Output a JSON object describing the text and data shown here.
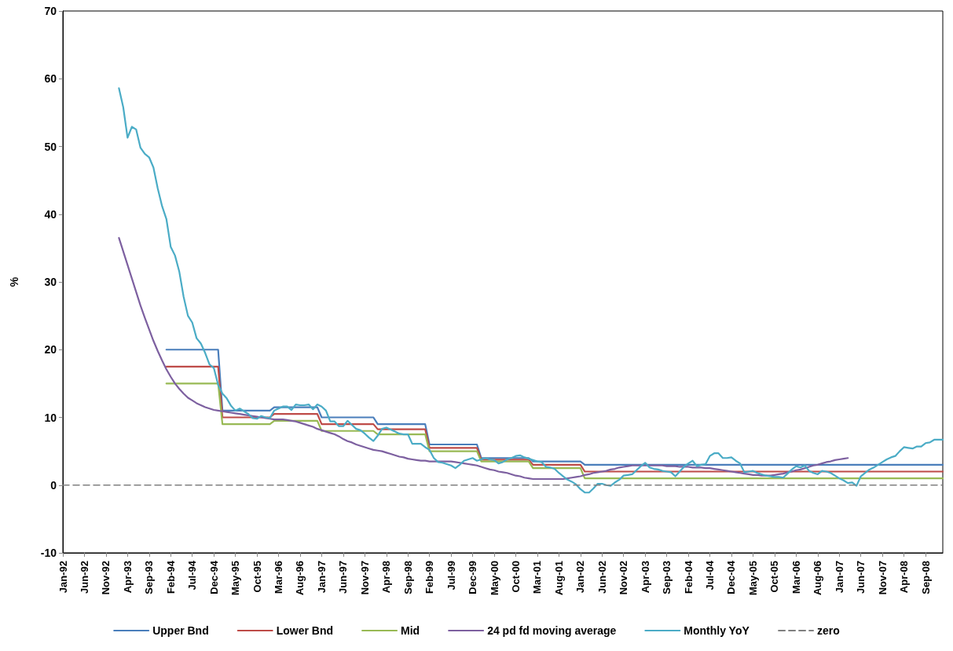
{
  "chart_data": {
    "type": "line",
    "ylabel": "%",
    "ylim": [
      -10,
      70
    ],
    "yticks": [
      -10,
      0,
      10,
      20,
      30,
      40,
      50,
      60,
      70
    ],
    "grid": false,
    "legend": "bottom",
    "marker": "none",
    "categories": [
      "Jan-92",
      null,
      null,
      null,
      null,
      "Jun-92",
      null,
      null,
      null,
      null,
      "Nov-92",
      null,
      null,
      null,
      null,
      "Apr-93",
      null,
      null,
      null,
      null,
      "Sep-93",
      null,
      null,
      null,
      null,
      "Feb-94",
      null,
      null,
      null,
      null,
      "Jul-94",
      null,
      null,
      null,
      null,
      "Dec-94",
      null,
      null,
      null,
      null,
      "May-95",
      null,
      null,
      null,
      null,
      "Oct-95",
      null,
      null,
      null,
      null,
      "Mar-96",
      null,
      null,
      null,
      null,
      "Aug-96",
      null,
      null,
      null,
      null,
      "Jan-97",
      null,
      null,
      null,
      null,
      "Jun-97",
      null,
      null,
      null,
      null,
      "Nov-97",
      null,
      null,
      null,
      null,
      "Apr-98",
      null,
      null,
      null,
      null,
      "Sep-98",
      null,
      null,
      null,
      null,
      "Feb-99",
      null,
      null,
      null,
      null,
      "Jul-99",
      null,
      null,
      null,
      null,
      "Dec-99",
      null,
      null,
      null,
      null,
      "May-00",
      null,
      null,
      null,
      null,
      "Oct-00",
      null,
      null,
      null,
      null,
      "Mar-01",
      null,
      null,
      null,
      null,
      "Aug-01",
      null,
      null,
      null,
      null,
      "Jan-02",
      null,
      null,
      null,
      null,
      "Jun-02",
      null,
      null,
      null,
      null,
      "Nov-02",
      null,
      null,
      null,
      null,
      "Apr-03",
      null,
      null,
      null,
      null,
      "Sep-03",
      null,
      null,
      null,
      null,
      "Feb-04",
      null,
      null,
      null,
      null,
      "Jul-04",
      null,
      null,
      null,
      null,
      "Dec-04",
      null,
      null,
      null,
      null,
      "May-05",
      null,
      null,
      null,
      null,
      "Oct-05",
      null,
      null,
      null,
      null,
      "Mar-06",
      null,
      null,
      null,
      null,
      "Aug-06",
      null,
      null,
      null,
      null,
      "Jan-07",
      null,
      null,
      null,
      null,
      "Jun-07",
      null,
      null,
      null,
      null,
      "Nov-07",
      null,
      null,
      null,
      null,
      "Apr-08",
      null,
      null,
      null,
      null,
      "Sep-08",
      null,
      null,
      null,
      null
    ],
    "series": [
      {
        "name": "Upper Bnd",
        "color": "#4a7ebb",
        "values": [
          null,
          null,
          null,
          null,
          null,
          null,
          null,
          null,
          null,
          null,
          null,
          null,
          null,
          null,
          null,
          null,
          null,
          null,
          null,
          null,
          null,
          null,
          null,
          null,
          20,
          20,
          20,
          20,
          20,
          20,
          20,
          20,
          20,
          20,
          20,
          20,
          20,
          11,
          11,
          11,
          11,
          11,
          11,
          11,
          11,
          11,
          11,
          11,
          11,
          11.5,
          11.5,
          11.5,
          11.5,
          11.5,
          11.5,
          11.5,
          11.5,
          11.5,
          11.5,
          11.5,
          10,
          10,
          10,
          10,
          10,
          10,
          10,
          10,
          10,
          10,
          10,
          10,
          10,
          9,
          9,
          9,
          9,
          9,
          9,
          9,
          9,
          9,
          9,
          9,
          9,
          6,
          6,
          6,
          6,
          6,
          6,
          6,
          6,
          6,
          6,
          6,
          6,
          4,
          4,
          4,
          4,
          4,
          4,
          4,
          4,
          4,
          4,
          4,
          4,
          3.5,
          3.5,
          3.5,
          3.5,
          3.5,
          3.5,
          3.5,
          3.5,
          3.5,
          3.5,
          3.5,
          3.5,
          3,
          3,
          3,
          3,
          3,
          3,
          3,
          3,
          3,
          3,
          3,
          3,
          3,
          3,
          3,
          3,
          3,
          3,
          3,
          3,
          3,
          3,
          3,
          3,
          3,
          3,
          3,
          3,
          3,
          3,
          3,
          3,
          3,
          3,
          3,
          3,
          3,
          3,
          3,
          3,
          3,
          3,
          3,
          3,
          3,
          3,
          3,
          3,
          3,
          3,
          3,
          3,
          3,
          3,
          3,
          3,
          3,
          3,
          3,
          3,
          3,
          3,
          3,
          3,
          3,
          3,
          3,
          3,
          3,
          3,
          3,
          3,
          3,
          3,
          3,
          3,
          3,
          3,
          3,
          3,
          3,
          3,
          3,
          3
        ]
      },
      {
        "name": "Lower Bnd",
        "color": "#be4b48",
        "values": [
          null,
          null,
          null,
          null,
          null,
          null,
          null,
          null,
          null,
          null,
          null,
          null,
          null,
          null,
          null,
          null,
          null,
          null,
          null,
          null,
          null,
          null,
          null,
          null,
          17.5,
          17.5,
          17.5,
          17.5,
          17.5,
          17.5,
          17.5,
          17.5,
          17.5,
          17.5,
          17.5,
          17.5,
          17.5,
          10,
          10,
          10,
          10,
          10,
          10,
          10,
          10,
          10,
          10,
          10,
          10,
          10.5,
          10.5,
          10.5,
          10.5,
          10.5,
          10.5,
          10.5,
          10.5,
          10.5,
          10.5,
          10.5,
          9,
          9,
          9,
          9,
          9,
          9,
          9,
          9,
          9,
          9,
          9,
          9,
          9,
          8.25,
          8.25,
          8.25,
          8.25,
          8.25,
          8.25,
          8.25,
          8.25,
          8.25,
          8.25,
          8.25,
          8.25,
          5.5,
          5.5,
          5.5,
          5.5,
          5.5,
          5.5,
          5.5,
          5.5,
          5.5,
          5.5,
          5.5,
          5.5,
          3.75,
          3.75,
          3.75,
          3.75,
          3.75,
          3.75,
          3.75,
          3.75,
          3.75,
          3.75,
          3.75,
          3.75,
          3,
          3,
          3,
          3,
          3,
          3,
          3,
          3,
          3,
          3,
          3,
          3,
          2,
          2,
          2,
          2,
          2,
          2,
          2,
          2,
          2,
          2,
          2,
          2,
          2,
          2,
          2,
          2,
          2,
          2,
          2,
          2,
          2,
          2,
          2,
          2,
          2,
          2,
          2,
          2,
          2,
          2,
          2,
          2,
          2,
          2,
          2,
          2,
          2,
          2,
          2,
          2,
          2,
          2,
          2,
          2,
          2,
          2,
          2,
          2,
          2,
          2,
          2,
          2,
          2,
          2,
          2,
          2,
          2,
          2,
          2,
          2,
          2,
          2,
          2,
          2,
          2,
          2,
          2,
          2,
          2,
          2,
          2,
          2,
          2,
          2,
          2,
          2,
          2,
          2,
          2,
          2,
          2,
          2,
          2,
          2
        ]
      },
      {
        "name": "Mid",
        "color": "#98b954",
        "values": [
          null,
          null,
          null,
          null,
          null,
          null,
          null,
          null,
          null,
          null,
          null,
          null,
          null,
          null,
          null,
          null,
          null,
          null,
          null,
          null,
          null,
          null,
          null,
          null,
          15,
          15,
          15,
          15,
          15,
          15,
          15,
          15,
          15,
          15,
          15,
          15,
          15,
          9,
          9,
          9,
          9,
          9,
          9,
          9,
          9,
          9,
          9,
          9,
          9,
          9.5,
          9.5,
          9.5,
          9.5,
          9.5,
          9.5,
          9.5,
          9.5,
          9.5,
          9.5,
          9.5,
          8,
          8,
          8,
          8,
          8,
          8,
          8,
          8,
          8,
          8,
          8,
          8,
          8,
          7.5,
          7.5,
          7.5,
          7.5,
          7.5,
          7.5,
          7.5,
          7.5,
          7.5,
          7.5,
          7.5,
          7.5,
          5,
          5,
          5,
          5,
          5,
          5,
          5,
          5,
          5,
          5,
          5,
          5,
          3.5,
          3.5,
          3.5,
          3.5,
          3.5,
          3.5,
          3.5,
          3.5,
          3.5,
          3.5,
          3.5,
          3.5,
          2.5,
          2.5,
          2.5,
          2.5,
          2.5,
          2.5,
          2.5,
          2.5,
          2.5,
          2.5,
          2.5,
          2.5,
          1,
          1,
          1,
          1,
          1,
          1,
          1,
          1,
          1,
          1,
          1,
          1,
          1,
          1,
          1,
          1,
          1,
          1,
          1,
          1,
          1,
          1,
          1,
          1,
          1,
          1,
          1,
          1,
          1,
          1,
          1,
          1,
          1,
          1,
          1,
          1,
          1,
          1,
          1,
          1,
          1,
          1,
          1,
          1,
          1,
          1,
          1,
          1,
          1,
          1,
          1,
          1,
          1,
          1,
          1,
          1,
          1,
          1,
          1,
          1,
          1,
          1,
          1,
          1,
          1,
          1,
          1,
          1,
          1,
          1,
          1,
          1,
          1,
          1,
          1,
          1,
          1,
          1,
          1,
          1,
          1,
          1,
          1,
          1
        ]
      },
      {
        "name": "24 pd fd moving average",
        "color": "#7d60a0",
        "values": [
          null,
          null,
          null,
          null,
          null,
          null,
          null,
          null,
          null,
          null,
          null,
          null,
          null,
          36.5,
          34.5,
          32.5,
          30.5,
          28.5,
          26.5,
          24.7,
          23.0,
          21.3,
          19.8,
          18.4,
          17.1,
          16.0,
          15.0,
          14.2,
          13.5,
          12.9,
          12.5,
          12.1,
          11.8,
          11.5,
          11.3,
          11.1,
          11.0,
          10.9,
          10.8,
          10.7,
          10.6,
          10.5,
          10.4,
          10.3,
          10.2,
          10.1,
          10.0,
          9.9,
          9.8,
          9.7,
          9.7,
          9.7,
          9.6,
          9.5,
          9.4,
          9.2,
          9.0,
          8.8,
          8.6,
          8.3,
          8.1,
          7.9,
          7.7,
          7.5,
          7.2,
          6.8,
          6.5,
          6.3,
          6.0,
          5.8,
          5.6,
          5.4,
          5.2,
          5.1,
          5.0,
          4.8,
          4.6,
          4.4,
          4.2,
          4.1,
          3.9,
          3.8,
          3.7,
          3.6,
          3.6,
          3.5,
          3.5,
          3.5,
          3.5,
          3.5,
          3.5,
          3.4,
          3.3,
          3.2,
          3.1,
          3.0,
          2.9,
          2.7,
          2.5,
          2.3,
          2.2,
          2.0,
          1.9,
          1.8,
          1.6,
          1.4,
          1.3,
          1.1,
          1.0,
          0.9,
          0.9,
          0.9,
          0.9,
          0.9,
          0.9,
          0.9,
          0.9,
          1.0,
          1.1,
          1.2,
          1.3,
          1.5,
          1.6,
          1.8,
          1.9,
          2.0,
          2.1,
          2.3,
          2.4,
          2.6,
          2.7,
          2.8,
          2.9,
          2.9,
          2.9,
          2.9,
          2.9,
          2.9,
          2.9,
          2.9,
          2.8,
          2.8,
          2.8,
          2.7,
          2.7,
          2.7,
          2.6,
          2.6,
          2.6,
          2.5,
          2.5,
          2.4,
          2.3,
          2.2,
          2.1,
          2.0,
          1.9,
          1.8,
          1.7,
          1.6,
          1.5,
          1.5,
          1.4,
          1.4,
          1.4,
          1.5,
          1.6,
          1.7,
          1.9,
          2.0,
          2.2,
          2.3,
          2.5,
          2.7,
          2.9,
          3.0,
          3.2,
          3.4,
          3.5,
          3.7,
          3.8,
          3.9,
          4.0,
          null,
          null,
          null,
          null,
          null,
          null,
          null,
          null,
          null,
          null,
          null,
          null,
          null,
          null,
          null,
          null,
          null,
          null,
          null,
          null,
          null,
          null
        ]
      },
      {
        "name": "Monthly YoY",
        "color": "#4bacc6",
        "values": [
          null,
          null,
          null,
          null,
          null,
          null,
          null,
          null,
          null,
          null,
          null,
          null,
          null,
          58.6,
          55.8,
          51.3,
          52.9,
          52.5,
          49.8,
          48.9,
          48.4,
          46.9,
          43.8,
          41.2,
          39.3,
          35.2,
          33.9,
          31.5,
          27.8,
          25.0,
          24.0,
          21.7,
          20.9,
          19.5,
          17.8,
          17.3,
          14.8,
          13.5,
          12.8,
          11.7,
          11.0,
          11.3,
          10.9,
          10.5,
          9.9,
          9.8,
          10.2,
          10.0,
          9.9,
          11.0,
          11.3,
          11.6,
          11.6,
          11.1,
          11.9,
          11.8,
          11.8,
          11.9,
          11.2,
          11.9,
          11.6,
          11.0,
          9.4,
          9.4,
          8.7,
          8.7,
          9.5,
          8.9,
          8.3,
          8.1,
          7.6,
          7.0,
          6.5,
          7.3,
          8.3,
          8.5,
          8.2,
          7.9,
          7.6,
          7.5,
          7.5,
          6.1,
          6.1,
          6.1,
          5.6,
          5.2,
          4.0,
          3.4,
          3.3,
          3.1,
          2.9,
          2.5,
          3.0,
          3.6,
          3.8,
          4.0,
          3.6,
          3.8,
          4.0,
          3.8,
          3.7,
          3.2,
          3.4,
          3.8,
          4.0,
          4.3,
          4.4,
          4.1,
          3.9,
          3.7,
          3.5,
          3.4,
          2.7,
          2.6,
          2.4,
          1.8,
          1.3,
          0.8,
          0.5,
          0.1,
          -0.6,
          -1.1,
          -1.1,
          -0.5,
          0.2,
          0.2,
          0.0,
          -0.1,
          0.4,
          0.8,
          1.4,
          1.5,
          1.6,
          2.2,
          2.8,
          3.3,
          2.6,
          2.4,
          2.3,
          2.1,
          2.0,
          1.9,
          1.3,
          2.0,
          2.7,
          3.2,
          3.6,
          2.8,
          3.0,
          3.1,
          4.3,
          4.7,
          4.7,
          4.0,
          4.0,
          4.1,
          3.6,
          3.2,
          1.9,
          2.0,
          2.1,
          1.8,
          1.6,
          1.4,
          1.3,
          1.2,
          1.2,
          1.1,
          1.7,
          2.3,
          2.8,
          2.6,
          2.9,
          2.1,
          1.8,
          1.6,
          2.1,
          2.0,
          1.8,
          1.4,
          1.0,
          0.7,
          0.3,
          0.4,
          -0.1,
          1.3,
          1.8,
          2.3,
          2.6,
          3.0,
          3.4,
          3.8,
          4.1,
          4.3,
          5.0,
          5.6,
          5.5,
          5.4,
          5.7,
          5.7,
          6.2,
          6.3,
          6.7,
          6.7,
          6.7
        ]
      },
      {
        "name": "zero",
        "color": "#808080",
        "line_style": "dashed",
        "values": [
          0,
          0,
          0,
          0,
          0,
          0,
          0,
          0,
          0,
          0,
          0,
          0,
          0,
          0,
          0,
          0,
          0,
          0,
          0,
          0,
          0,
          0,
          0,
          0,
          0,
          0,
          0,
          0,
          0,
          0,
          0,
          0,
          0,
          0,
          0,
          0,
          0,
          0,
          0,
          0,
          0,
          0,
          0,
          0,
          0,
          0,
          0,
          0,
          0,
          0,
          0,
          0,
          0,
          0,
          0,
          0,
          0,
          0,
          0,
          0,
          0,
          0,
          0,
          0,
          0,
          0,
          0,
          0,
          0,
          0,
          0,
          0,
          0,
          0,
          0,
          0,
          0,
          0,
          0,
          0,
          0,
          0,
          0,
          0,
          0,
          0,
          0,
          0,
          0,
          0,
          0,
          0,
          0,
          0,
          0,
          0,
          0,
          0,
          0,
          0,
          0,
          0,
          0,
          0,
          0,
          0,
          0,
          0,
          0,
          0,
          0,
          0,
          0,
          0,
          0,
          0,
          0,
          0,
          0,
          0,
          0,
          0,
          0,
          0,
          0,
          0,
          0,
          0,
          0,
          0,
          0,
          0,
          0,
          0,
          0,
          0,
          0,
          0,
          0,
          0,
          0,
          0,
          0,
          0,
          0,
          0,
          0,
          0,
          0,
          0,
          0,
          0,
          0,
          0,
          0,
          0,
          0,
          0,
          0,
          0,
          0,
          0,
          0,
          0,
          0,
          0,
          0,
          0,
          0,
          0,
          0,
          0,
          0,
          0,
          0,
          0,
          0,
          0,
          0,
          0,
          0,
          0,
          0,
          0,
          0,
          0,
          0,
          0,
          0,
          0,
          0,
          0,
          0,
          0,
          0,
          0,
          0,
          0,
          0,
          0,
          0,
          0,
          0,
          0,
          0
        ]
      }
    ]
  }
}
